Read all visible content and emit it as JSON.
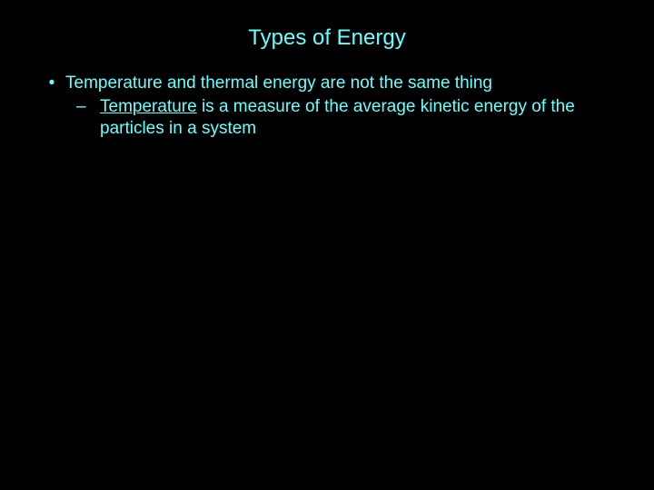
{
  "colors": {
    "background": "#000000",
    "text": "#66ffff"
  },
  "typography": {
    "title_fontsize": 24,
    "body_fontsize": 19,
    "font_family": "Arial"
  },
  "slide": {
    "title": "Types of Energy",
    "bullets": [
      {
        "marker": "•",
        "text": "Temperature and thermal energy are not the same thing",
        "sub": [
          {
            "marker": "–",
            "underlined_lead": "Temperature",
            "rest": " is a measure of the average kinetic energy of the particles in a system"
          }
        ]
      }
    ]
  }
}
